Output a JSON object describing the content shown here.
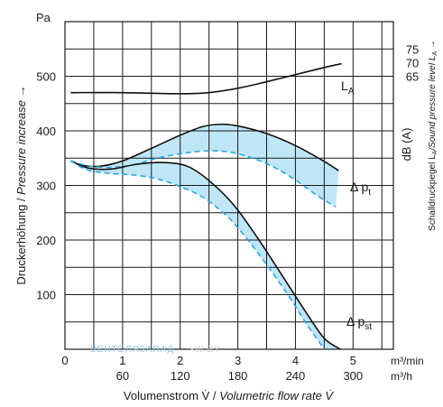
{
  "chart_data": {
    "type": "line",
    "title": "",
    "xlabel_prefix": "Volumenstrom V̇ / ",
    "xlabel_italic": "Volumetric flow rate V̇",
    "ylabel_prefix": "Druckerhöhung / ",
    "ylabel_italic": "Pressure increase →",
    "ylabel_unit": "Pa",
    "y2label": "Schalldruckpegel L",
    "y2label_sub": "A",
    "y2label_italic": "/Sound pressure level L",
    "y2label_italic_sub": "A",
    "y2label_arrow": " →",
    "y2unit": "dB (A)",
    "x_unit_top": "m³/min",
    "x_unit_bottom": "m³/h",
    "xlim": [
      0,
      5.7
    ],
    "ylim": [
      0,
      600
    ],
    "x_ticks_top": [
      "0",
      "1",
      "2",
      "3",
      "4",
      "5"
    ],
    "x_ticks_bottom": [
      "60",
      "120",
      "180",
      "240",
      "300"
    ],
    "y_ticks": [
      "100",
      "200",
      "300",
      "400",
      "500"
    ],
    "y2_ticks": [
      "65",
      "70",
      "75"
    ],
    "grid": true,
    "series": [
      {
        "name": "L",
        "name_sub": "A",
        "style": "solid",
        "x": [
          0.1,
          1.0,
          2.0,
          2.5,
          3.0,
          3.5,
          4.0,
          4.5,
          4.8
        ],
        "y": [
          470,
          470,
          468,
          470,
          478,
          490,
          503,
          516,
          523
        ]
      },
      {
        "name": "Δ p",
        "name_sub": "t",
        "style": "solid",
        "x": [
          0.1,
          0.3,
          0.6,
          1.0,
          1.5,
          2.0,
          2.4,
          2.7,
          3.0,
          3.5,
          4.0,
          4.5,
          4.75
        ],
        "y": [
          345,
          337,
          335,
          345,
          368,
          392,
          408,
          412,
          409,
          395,
          373,
          344,
          327
        ]
      },
      {
        "name": "",
        "style": "dashed",
        "x": [
          0.1,
          0.4,
          0.8,
          1.2,
          1.6,
          2.0,
          2.4,
          2.8,
          3.2,
          3.6,
          4.0,
          4.4,
          4.7
        ],
        "y": [
          345,
          336,
          333,
          338,
          350,
          358,
          363,
          362,
          352,
          335,
          310,
          280,
          261
        ]
      },
      {
        "name": "Δ p",
        "name_sub": "st",
        "style": "solid",
        "x": [
          0.1,
          0.4,
          0.8,
          1.2,
          1.6,
          2.0,
          2.3,
          2.7,
          3.0,
          3.4,
          3.8,
          4.2,
          4.5,
          4.78
        ],
        "y": [
          345,
          332,
          330,
          338,
          342,
          339,
          325,
          290,
          255,
          195,
          130,
          65,
          20,
          0
        ]
      },
      {
        "name": "",
        "style": "dashed",
        "x": [
          0.1,
          0.4,
          0.8,
          1.2,
          1.6,
          2.0,
          2.4,
          2.8,
          3.1,
          3.5,
          3.9,
          4.2,
          4.5
        ],
        "y": [
          345,
          328,
          322,
          319,
          312,
          298,
          278,
          245,
          210,
          155,
          95,
          45,
          0
        ]
      }
    ],
    "watermark": "ВЕНТОЛЯЗАПАД",
    "watermark_suffix": "•W.BY"
  }
}
